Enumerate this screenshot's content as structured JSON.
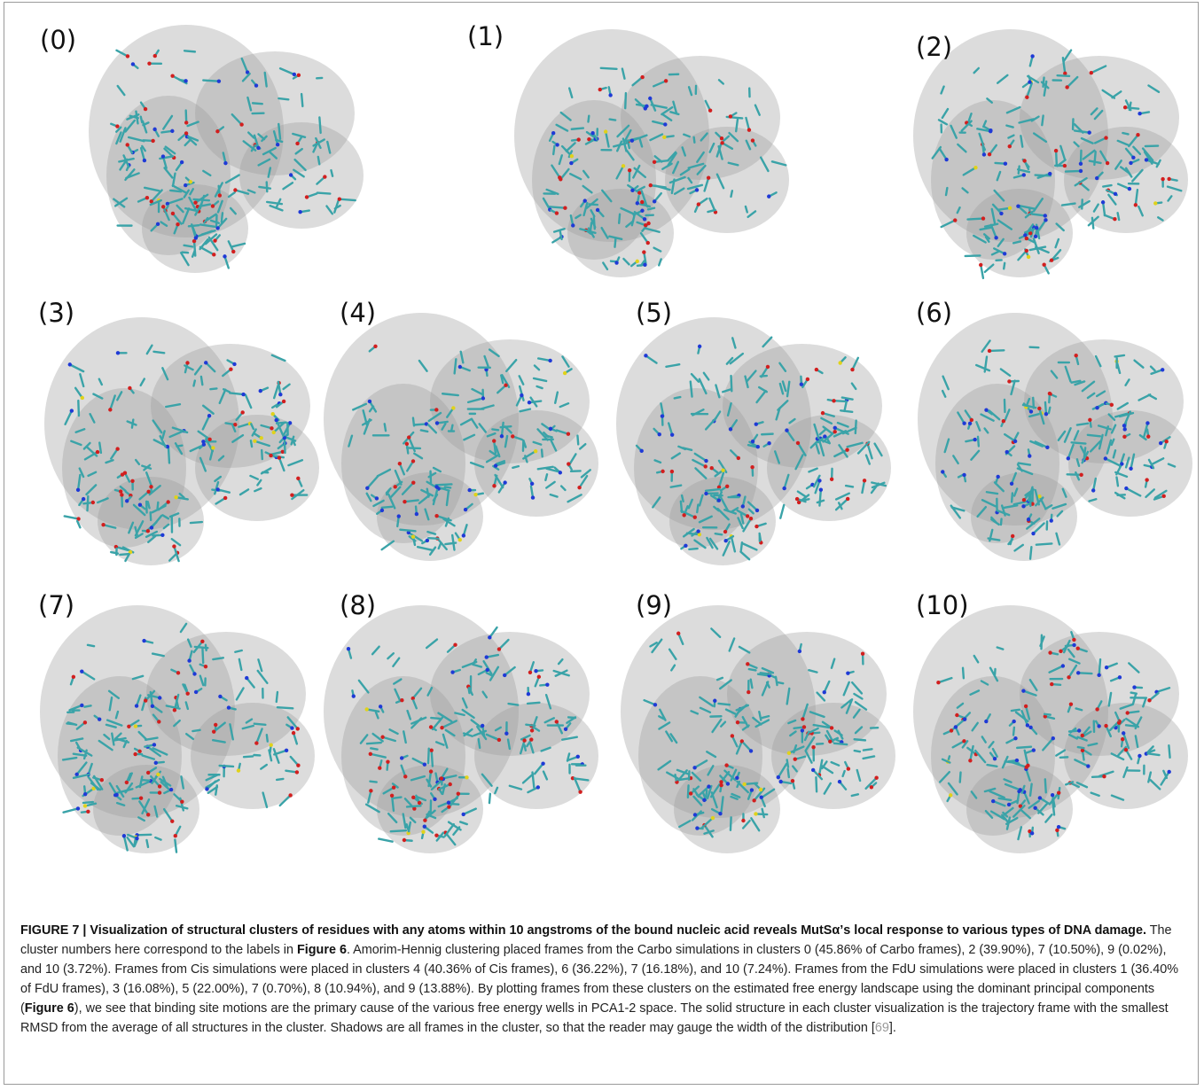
{
  "figure": {
    "panel_labels": [
      "(0)",
      "(1)",
      "(2)",
      "(3)",
      "(4)",
      "(5)",
      "(6)",
      "(7)",
      "(8)",
      "(9)",
      "(10)"
    ],
    "caption": [
      "FIGURE 7 | Visualization of structural clusters of residues with any atoms within 10 angstroms of the bound nucleic acid reveals MutSα’s local response to various types of DNA damage.",
      " The cluster numbers here correspond to the labels in ",
      "Figure 6",
      ". Amorim-Hennig clustering placed frames from the Carbo simulations in clusters 0 (45.86% of Carbo frames), 2 (39.90%), 7 (10.50%), 9 (0.02%), and 10 (3.72%). Frames from Cis simulations were placed in clusters 4 (40.36% of Cis frames), 6 (36.22%), 7 (16.18%), and 10 (7.24%). Frames from the FdU simulations were placed in clusters 1 (36.40% of FdU frames), 3 (16.08%), 5 (22.00%), 7 (0.70%), 8 (10.94%), and 9 (13.88%). By plotting frames from these clusters on the estimated free energy landscape using the dominant principal components (",
      "Figure 6",
      "), we see that binding site motions are the primary cause of the various free energy wells in PCA1-2 space. The solid structure in each cluster visualization is the trajectory frame with the smallest RMSD from the average of all structures in the cluster. Shadows are all frames in the cluster, so that the reader may gauge the width of the distribution [",
      "69",
      "]."
    ]
  }
}
